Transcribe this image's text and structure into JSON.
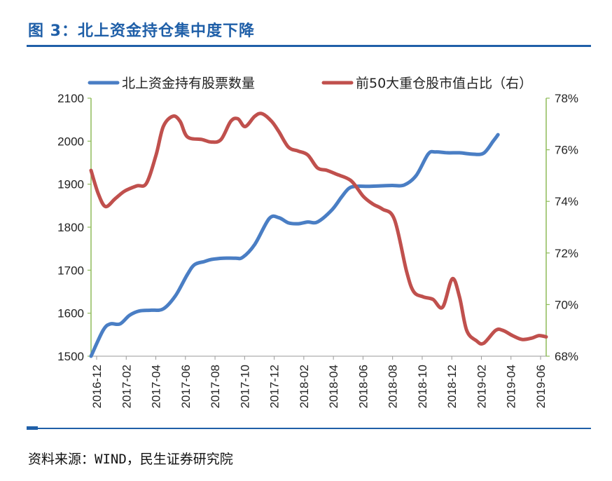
{
  "header": {
    "title": "图 3：北上资金持仓集中度下降"
  },
  "footer": {
    "source": "资料来源：WIND，民生证券研究院"
  },
  "chart_data": {
    "type": "line",
    "title": "",
    "xlabel": "",
    "ylabel": "",
    "y2label": "",
    "legend_position": "top",
    "grid": false,
    "ylim": [
      1500,
      2100
    ],
    "y2lim": [
      68,
      78
    ],
    "yticks": [
      "2100",
      "2000",
      "1900",
      "1800",
      "1700",
      "1600",
      "1500"
    ],
    "y2ticks": [
      "78%",
      "76%",
      "74%",
      "72%",
      "70%",
      "68%"
    ],
    "x_tick_labels": [
      "2016-12",
      "2017-02",
      "2017-04",
      "2017-06",
      "2017-08",
      "2017-10",
      "2017-12",
      "2018-02",
      "2018-04",
      "2018-06",
      "2018-08",
      "2018-10",
      "2018-12",
      "2019-02",
      "2019-04",
      "2019-06"
    ],
    "colors": {
      "series1": "#4a7ec4",
      "series2": "#c0504d",
      "left_axis": "#8fbc5a",
      "right_axis": "#8fbc5a"
    },
    "series": [
      {
        "name": "北上资金持有股票数量",
        "axis": "left",
        "points": [
          [
            0,
            1500
          ],
          [
            0.5,
            1560
          ],
          [
            0.8,
            1575
          ],
          [
            1.2,
            1575
          ],
          [
            1.6,
            1595
          ],
          [
            2,
            1605
          ],
          [
            2.5,
            1607
          ],
          [
            3,
            1610
          ],
          [
            3.5,
            1640
          ],
          [
            4,
            1690
          ],
          [
            4.3,
            1713
          ],
          [
            4.7,
            1720
          ],
          [
            5,
            1725
          ],
          [
            5.5,
            1728
          ],
          [
            6,
            1728
          ],
          [
            6.3,
            1730
          ],
          [
            6.8,
            1760
          ],
          [
            7.4,
            1820
          ],
          [
            7.8,
            1822
          ],
          [
            8.2,
            1810
          ],
          [
            8.6,
            1808
          ],
          [
            9,
            1812
          ],
          [
            9.4,
            1812
          ],
          [
            10,
            1840
          ],
          [
            10.4,
            1870
          ],
          [
            10.7,
            1890
          ],
          [
            11,
            1895
          ],
          [
            11.5,
            1895
          ],
          [
            12,
            1896
          ],
          [
            12.5,
            1897
          ],
          [
            13,
            1898
          ],
          [
            13.5,
            1920
          ],
          [
            14,
            1970
          ],
          [
            14.3,
            1975
          ],
          [
            14.8,
            1973
          ],
          [
            15.3,
            1973
          ],
          [
            15.8,
            1970
          ],
          [
            16.3,
            1972
          ],
          [
            16.7,
            2000
          ],
          [
            16.9,
            2015
          ]
        ]
      },
      {
        "name": "前50大重仓股市值占比（右）",
        "axis": "right",
        "points": [
          [
            0,
            75.2
          ],
          [
            0.3,
            74.3
          ],
          [
            0.6,
            73.8
          ],
          [
            1,
            74.1
          ],
          [
            1.4,
            74.4
          ],
          [
            1.9,
            74.6
          ],
          [
            2.3,
            74.7
          ],
          [
            2.7,
            75.8
          ],
          [
            3,
            76.9
          ],
          [
            3.4,
            77.3
          ],
          [
            3.7,
            77.1
          ],
          [
            4,
            76.5
          ],
          [
            4.6,
            76.4
          ],
          [
            5,
            76.3
          ],
          [
            5.4,
            76.4
          ],
          [
            5.8,
            77.1
          ],
          [
            6.1,
            77.2
          ],
          [
            6.4,
            76.9
          ],
          [
            6.8,
            77.3
          ],
          [
            7.1,
            77.4
          ],
          [
            7.5,
            77.1
          ],
          [
            7.8,
            76.7
          ],
          [
            8.2,
            76.1
          ],
          [
            8.6,
            75.95
          ],
          [
            9,
            75.8
          ],
          [
            9.4,
            75.3
          ],
          [
            9.8,
            75.2
          ],
          [
            10.2,
            75.05
          ],
          [
            10.8,
            74.8
          ],
          [
            11.3,
            74.2
          ],
          [
            11.7,
            73.9
          ],
          [
            12.1,
            73.7
          ],
          [
            12.6,
            73.3
          ],
          [
            13.1,
            71.3
          ],
          [
            13.4,
            70.5
          ],
          [
            13.8,
            70.3
          ],
          [
            14.2,
            70.2
          ],
          [
            14.6,
            69.9
          ],
          [
            15,
            71.0
          ],
          [
            15.3,
            70.3
          ],
          [
            15.6,
            69.0
          ],
          [
            16,
            68.6
          ],
          [
            16.3,
            68.5
          ],
          [
            16.8,
            69.0
          ],
          [
            17.1,
            69.0
          ],
          [
            17.5,
            68.8
          ],
          [
            17.9,
            68.65
          ],
          [
            18.3,
            68.7
          ],
          [
            18.6,
            68.8
          ],
          [
            18.9,
            68.75
          ]
        ]
      }
    ],
    "x_max": 18.9
  }
}
